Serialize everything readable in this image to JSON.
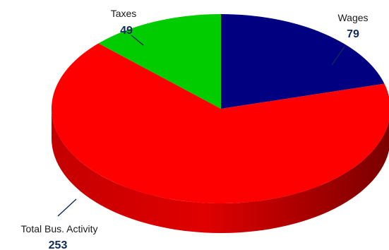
{
  "chart_data": {
    "type": "pie",
    "style": "3d",
    "title": "",
    "slices": [
      {
        "label": "Wages",
        "value": 79,
        "color": "#000080"
      },
      {
        "label": "Total Bus. Activity",
        "value": 253,
        "color": "#ff0000"
      },
      {
        "label": "Taxes",
        "value": 49,
        "color": "#00cc00"
      }
    ]
  }
}
